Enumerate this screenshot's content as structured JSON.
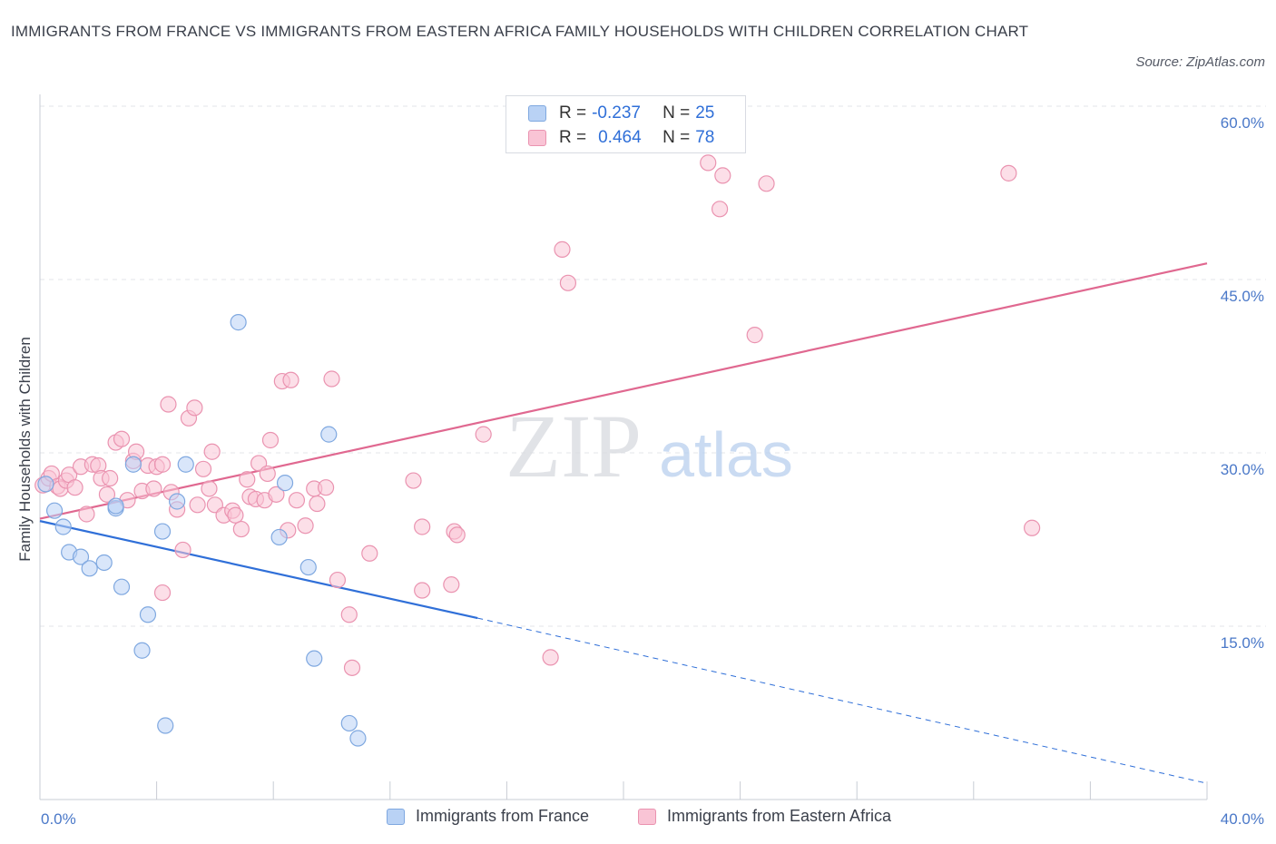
{
  "title": "IMMIGRANTS FROM FRANCE VS IMMIGRANTS FROM EASTERN AFRICA FAMILY HOUSEHOLDS WITH CHILDREN CORRELATION CHART",
  "source": "Source: ZipAtlas.com",
  "watermark": {
    "zip": "ZIP",
    "atlas": "atlas"
  },
  "legend_top": [
    {
      "r_label": "R =",
      "r_value": "-0.237",
      "n_label": "N =",
      "n_value": "25",
      "color": "#b9d2f5",
      "border": "#7fa8e0"
    },
    {
      "r_label": "R =",
      "r_value": "0.464",
      "n_label": "N =",
      "n_value": "78",
      "color": "#f9c4d5",
      "border": "#ea93b0"
    }
  ],
  "legend_bottom": [
    "Immigrants from France",
    "Immigrants from Eastern Africa"
  ],
  "chart_data": {
    "type": "scatter",
    "title": "IMMIGRANTS FROM FRANCE VS IMMIGRANTS FROM EASTERN AFRICA FAMILY HOUSEHOLDS WITH CHILDREN CORRELATION CHART",
    "xlabel": "",
    "ylabel": "Family Households with Children",
    "xlim": [
      0,
      40
    ],
    "ylim": [
      0,
      60
    ],
    "x_tick_labels": [
      "0.0%",
      "40.0%"
    ],
    "y_tick_values": [
      15,
      30,
      45,
      60
    ],
    "y_tick_labels": [
      "15.0%",
      "30.0%",
      "45.0%",
      "60.0%"
    ],
    "grid": true,
    "series": [
      {
        "name": "Immigrants from France",
        "color": "#b9d2f5",
        "stroke": "#7fa8e0",
        "line_color": "#2f6fd8",
        "trend": {
          "x0": 0,
          "y0": 24.1,
          "x1": 15.0,
          "y1": 15.7,
          "dash_to_x": 40,
          "dash_to_y": 1.4
        },
        "points": [
          [
            0.2,
            27.3
          ],
          [
            0.5,
            25.0
          ],
          [
            0.8,
            23.6
          ],
          [
            1.0,
            21.4
          ],
          [
            1.4,
            21.0
          ],
          [
            1.7,
            20.0
          ],
          [
            2.2,
            20.5
          ],
          [
            2.6,
            25.2
          ],
          [
            2.6,
            25.4
          ],
          [
            2.8,
            18.4
          ],
          [
            3.2,
            29.0
          ],
          [
            3.5,
            12.9
          ],
          [
            3.7,
            16.0
          ],
          [
            4.2,
            23.2
          ],
          [
            4.3,
            6.4
          ],
          [
            4.7,
            25.8
          ],
          [
            5.0,
            29.0
          ],
          [
            6.8,
            41.3
          ],
          [
            8.2,
            22.7
          ],
          [
            8.4,
            27.4
          ],
          [
            9.2,
            20.1
          ],
          [
            9.4,
            12.2
          ],
          [
            9.9,
            31.6
          ],
          [
            10.6,
            6.6
          ],
          [
            10.9,
            5.3
          ]
        ]
      },
      {
        "name": "Immigrants from Eastern Africa",
        "color": "#f9c4d5",
        "stroke": "#ea93b0",
        "line_color": "#e06890",
        "trend": {
          "x0": 0,
          "y0": 24.3,
          "x1": 40,
          "y1": 46.4
        },
        "points": [
          [
            0.1,
            27.2
          ],
          [
            0.3,
            27.8
          ],
          [
            0.4,
            28.2
          ],
          [
            0.6,
            27.1
          ],
          [
            0.7,
            26.9
          ],
          [
            0.9,
            27.6
          ],
          [
            1.0,
            28.1
          ],
          [
            1.2,
            27.0
          ],
          [
            1.4,
            28.8
          ],
          [
            1.6,
            24.7
          ],
          [
            1.8,
            29.0
          ],
          [
            2.0,
            28.9
          ],
          [
            2.1,
            27.8
          ],
          [
            2.3,
            26.4
          ],
          [
            2.4,
            27.8
          ],
          [
            2.6,
            30.9
          ],
          [
            2.8,
            31.2
          ],
          [
            3.0,
            25.9
          ],
          [
            3.2,
            29.3
          ],
          [
            3.3,
            30.1
          ],
          [
            3.5,
            26.7
          ],
          [
            3.7,
            28.9
          ],
          [
            3.9,
            26.9
          ],
          [
            4.0,
            28.8
          ],
          [
            4.2,
            29.0
          ],
          [
            4.2,
            17.9
          ],
          [
            4.4,
            34.2
          ],
          [
            4.5,
            26.6
          ],
          [
            4.7,
            25.1
          ],
          [
            4.9,
            21.6
          ],
          [
            5.1,
            33.0
          ],
          [
            5.3,
            33.9
          ],
          [
            5.4,
            25.5
          ],
          [
            5.6,
            28.6
          ],
          [
            5.8,
            26.9
          ],
          [
            5.9,
            30.1
          ],
          [
            6.0,
            25.5
          ],
          [
            6.3,
            24.6
          ],
          [
            6.6,
            25.0
          ],
          [
            6.7,
            24.6
          ],
          [
            6.9,
            23.4
          ],
          [
            7.1,
            27.7
          ],
          [
            7.2,
            26.2
          ],
          [
            7.4,
            26.0
          ],
          [
            7.5,
            29.1
          ],
          [
            7.7,
            25.9
          ],
          [
            7.8,
            28.2
          ],
          [
            7.9,
            31.1
          ],
          [
            8.1,
            26.4
          ],
          [
            8.3,
            36.2
          ],
          [
            8.5,
            23.3
          ],
          [
            8.6,
            36.3
          ],
          [
            8.8,
            25.9
          ],
          [
            9.1,
            23.7
          ],
          [
            9.4,
            26.9
          ],
          [
            9.5,
            25.6
          ],
          [
            9.8,
            27.0
          ],
          [
            10.0,
            36.4
          ],
          [
            10.2,
            19.0
          ],
          [
            10.6,
            16.0
          ],
          [
            10.7,
            11.4
          ],
          [
            11.3,
            21.3
          ],
          [
            12.8,
            27.6
          ],
          [
            13.1,
            23.6
          ],
          [
            13.1,
            18.1
          ],
          [
            14.1,
            18.6
          ],
          [
            14.2,
            23.2
          ],
          [
            14.3,
            22.9
          ],
          [
            15.2,
            31.6
          ],
          [
            17.5,
            12.3
          ],
          [
            17.9,
            47.6
          ],
          [
            18.1,
            44.7
          ],
          [
            22.9,
            55.1
          ],
          [
            23.3,
            51.1
          ],
          [
            23.4,
            54.0
          ],
          [
            24.5,
            40.2
          ],
          [
            24.9,
            53.3
          ],
          [
            33.2,
            54.2
          ],
          [
            34.0,
            23.5
          ]
        ]
      }
    ]
  }
}
